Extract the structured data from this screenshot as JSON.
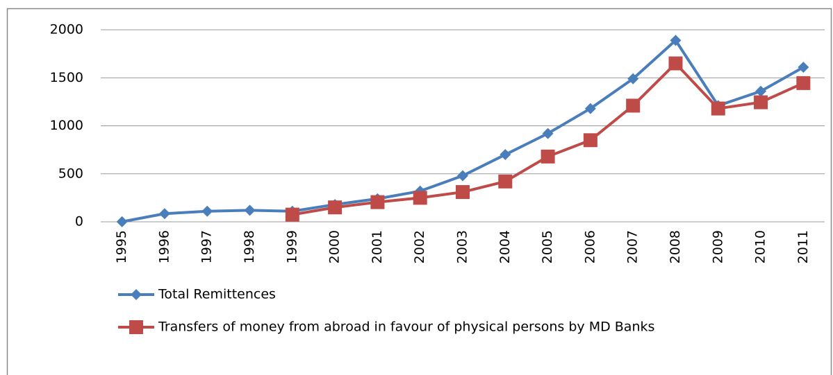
{
  "chart_data": {
    "type": "line",
    "categories": [
      "1995",
      "1996",
      "1997",
      "1998",
      "1999",
      "2000",
      "2001",
      "2002",
      "2003",
      "2004",
      "2005",
      "2006",
      "2007",
      "2008",
      "2009",
      "2010",
      "2011"
    ],
    "series": [
      {
        "name": "Total Remittences",
        "color": "#4a7ebb",
        "marker": "diamond",
        "values": [
          1,
          85,
          110,
          120,
          110,
          180,
          240,
          320,
          480,
          700,
          920,
          1180,
          1490,
          1890,
          1210,
          1360,
          1610
        ]
      },
      {
        "name": "Transfers of money from abroad in favour of physical persons by MD Banks",
        "color": "#be4b48",
        "marker": "square",
        "values": [
          null,
          null,
          null,
          null,
          75,
          150,
          205,
          250,
          310,
          420,
          680,
          850,
          1210,
          1650,
          1180,
          1245,
          1445
        ]
      }
    ],
    "ylim": [
      0,
      2000
    ],
    "yticks": [
      0,
      500,
      1000,
      1500,
      2000
    ],
    "grid": true
  }
}
